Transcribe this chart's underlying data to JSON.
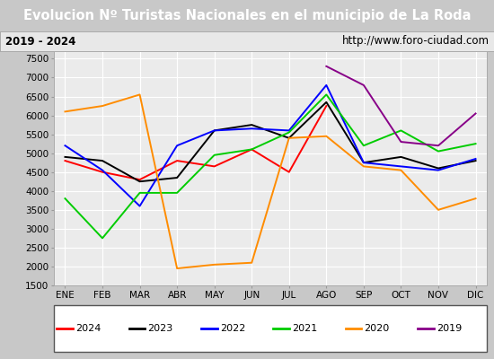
{
  "title": "Evolucion Nº Turistas Nacionales en el municipio de La Roda",
  "subtitle_left": "2019 - 2024",
  "subtitle_right": "http://www.foro-ciudad.com",
  "months": [
    "ENE",
    "FEB",
    "MAR",
    "ABR",
    "MAY",
    "JUN",
    "JUL",
    "AGO",
    "SEP",
    "OCT",
    "NOV",
    "DIC"
  ],
  "series": {
    "2024": [
      4800,
      4500,
      4300,
      4800,
      4650,
      5100,
      4500,
      6250,
      null,
      null,
      null,
      null
    ],
    "2023": [
      4900,
      4800,
      4250,
      4350,
      5600,
      5750,
      5400,
      6350,
      4750,
      4900,
      4600,
      4800
    ],
    "2022": [
      5200,
      4550,
      3600,
      5200,
      5600,
      5650,
      5600,
      6800,
      4750,
      4650,
      4550,
      4850
    ],
    "2021": [
      3800,
      2750,
      3950,
      3950,
      4950,
      5100,
      5550,
      6550,
      5200,
      5600,
      5050,
      5250
    ],
    "2020": [
      6100,
      6250,
      6550,
      1950,
      2050,
      2100,
      5400,
      5450,
      4650,
      4550,
      3500,
      3800
    ],
    "2019": [
      null,
      null,
      null,
      null,
      null,
      null,
      null,
      7300,
      6800,
      5300,
      5200,
      6050
    ]
  },
  "colors": {
    "2024": "#ff0000",
    "2023": "#000000",
    "2022": "#0000ff",
    "2021": "#00cc00",
    "2020": "#ff8c00",
    "2019": "#880088"
  },
  "ylim": [
    1500,
    7700
  ],
  "yticks": [
    1500,
    2000,
    2500,
    3000,
    3500,
    4000,
    4500,
    5000,
    5500,
    6000,
    6500,
    7000,
    7500
  ],
  "title_bg": "#4a86c8",
  "title_color": "#ffffff",
  "title_fontsize": 10.5,
  "subtitle_bg": "#e8e8e8",
  "plot_bg": "#ebebeb",
  "grid_color": "#ffffff",
  "legend_years": [
    "2024",
    "2023",
    "2022",
    "2021",
    "2020",
    "2019"
  ]
}
